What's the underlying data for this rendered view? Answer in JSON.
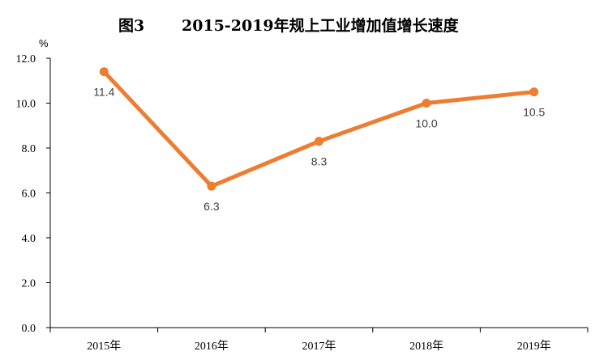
{
  "chart_data": {
    "type": "line",
    "title_prefix": "图3",
    "title": "2015-2019年规上工业增加值增长速度",
    "unit": "%",
    "categories": [
      "2015年",
      "2016年",
      "2017年",
      "2018年",
      "2019年"
    ],
    "values": [
      11.4,
      6.3,
      8.3,
      10.0,
      10.5
    ],
    "value_labels": [
      "11.4",
      "6.3",
      "8.3",
      "10.0",
      "10.5"
    ],
    "y_ticks": [
      "0.0",
      "2.0",
      "4.0",
      "6.0",
      "8.0",
      "10.0",
      "12.0"
    ],
    "ylim": [
      0,
      12
    ],
    "grid": false,
    "legend": "none",
    "line_color": "#ED7D31",
    "axis_color": "#000000"
  }
}
